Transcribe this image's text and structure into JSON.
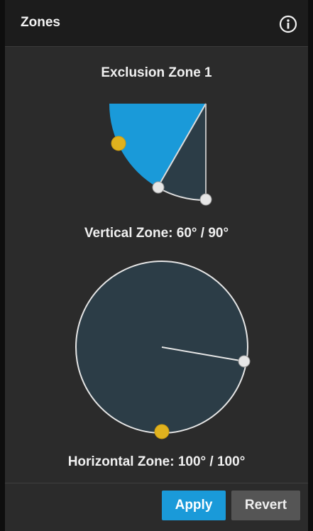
{
  "header": {
    "title": "Zones",
    "info_icon": "info-circle-icon"
  },
  "zone": {
    "name": "Exclusion Zone 1",
    "vertical": {
      "label": "Vertical Zone: 60° / 90°",
      "angle_deg": 60,
      "max_deg": 90
    },
    "horizontal": {
      "label": "Horizontal Zone: 100° / 100°",
      "angle_deg": 100,
      "max_deg": 100
    }
  },
  "footer": {
    "apply_label": "Apply",
    "revert_label": "Revert"
  },
  "colors": {
    "accent_blue": "#1a9ad9",
    "handle_yellow": "#e0b21e",
    "fill_slate": "#2c3d47",
    "handle_white": "#e6e6e6",
    "header_bg": "#1c1c1c",
    "panel_bg": "#2b2b2b"
  }
}
